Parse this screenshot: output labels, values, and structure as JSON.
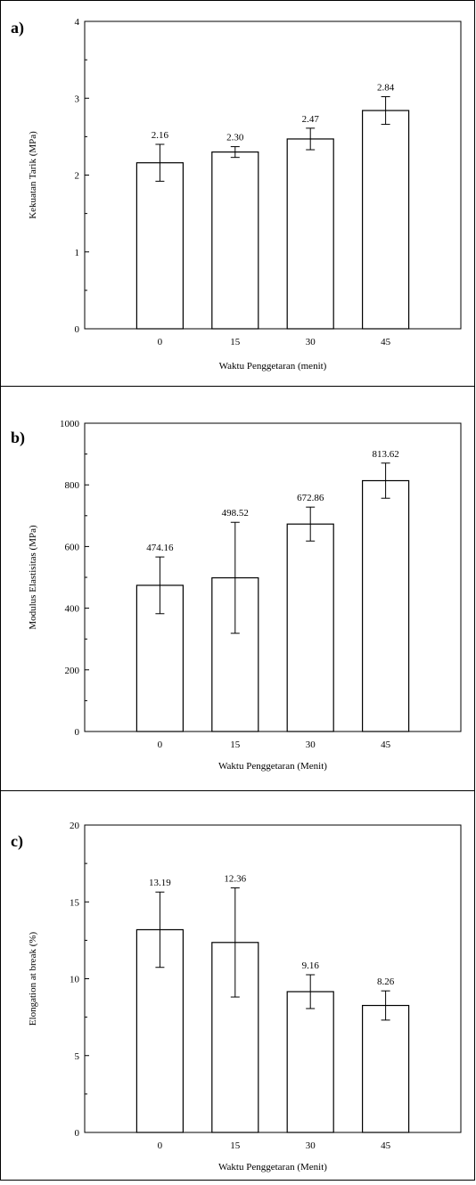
{
  "chart_data": [
    {
      "type": "bar",
      "panel_label": "a)",
      "categories": [
        "0",
        "15",
        "30",
        "45"
      ],
      "values": [
        2.16,
        2.3,
        2.47,
        2.84
      ],
      "errors": [
        0.24,
        0.07,
        0.14,
        0.18
      ],
      "value_labels": [
        "2.16",
        "2.30",
        "2.47",
        "2.84"
      ],
      "xlabel": "Waktu Penggetaran (menit)",
      "ylabel": "Kekuatan Tarik (MPa)",
      "ylim": [
        0,
        4
      ],
      "yticks": [
        "0",
        "1",
        "2",
        "3",
        "4"
      ],
      "ytick_values": [
        0,
        1,
        2,
        3,
        4
      ],
      "grid": false
    },
    {
      "type": "bar",
      "panel_label": "b)",
      "categories": [
        "0",
        "15",
        "30",
        "45"
      ],
      "values": [
        474.16,
        498.52,
        672.86,
        813.62
      ],
      "errors": [
        92,
        180,
        55,
        57
      ],
      "value_labels": [
        "474.16",
        "498.52",
        "672.86",
        "813.62"
      ],
      "xlabel": "Waktu Penggetaran (Menit)",
      "ylabel": "Modulus Elastisitas (MPa)",
      "ylim": [
        0,
        1000
      ],
      "yticks": [
        "0",
        "200",
        "400",
        "600",
        "800",
        "1000"
      ],
      "ytick_values": [
        0,
        200,
        400,
        600,
        800,
        1000
      ],
      "grid": false
    },
    {
      "type": "bar",
      "panel_label": "c)",
      "categories": [
        "0",
        "15",
        "30",
        "45"
      ],
      "values": [
        13.19,
        12.36,
        9.16,
        8.26
      ],
      "errors": [
        2.45,
        3.55,
        1.1,
        0.95
      ],
      "value_labels": [
        "13.19",
        "12.36",
        "9.16",
        "8.26"
      ],
      "xlabel": "Waktu Penggetaran (Menit)",
      "ylabel": "Elongation at break (%)",
      "ylim": [
        0,
        20
      ],
      "yticks": [
        "0",
        "5",
        "10",
        "15",
        "20"
      ],
      "ytick_values": [
        0,
        5,
        10,
        15,
        20
      ],
      "grid": false
    }
  ]
}
